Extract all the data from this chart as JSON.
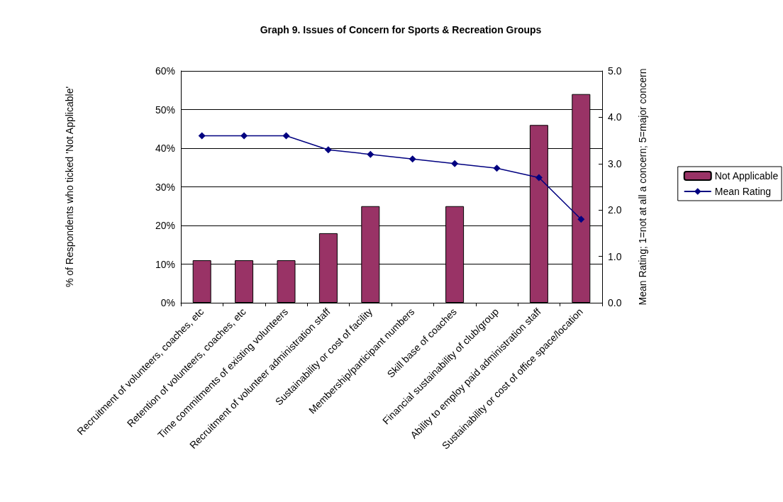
{
  "chart_data": {
    "type": "bar",
    "title": "Graph 9. Issues of Concern for Sports & Recreation Groups",
    "categories": [
      "Recruitment of volunteers, coaches, etc",
      "Retention of volunteers, coaches, etc",
      "Time commitments of existing volunteers",
      "Recruitment of volunteer administration staff",
      "Sustainability or cost of facility",
      "Membership/participant numbers",
      "Skill base of coaches",
      "Financial sustainability of club/group",
      "Ability to employ paid administration staff",
      "Sustainability or cost of office space/location"
    ],
    "series": [
      {
        "name": "Not Applicable",
        "color": "#993366",
        "values": [
          11,
          11,
          11,
          18,
          25,
          null,
          25,
          null,
          46,
          54
        ]
      },
      {
        "name": "Mean Rating",
        "type": "line",
        "axis": "y2",
        "color": "#000080",
        "marker": "diamond",
        "values": [
          3.6,
          3.6,
          3.6,
          3.3,
          3.2,
          3.1,
          3.0,
          2.9,
          2.7,
          1.8
        ]
      }
    ],
    "ylabel": "% of Respondents who ticked 'Not Applicable'",
    "y2label": "Mean Rating; 1=not at all a concern; 5=major concern",
    "ylim": [
      0,
      60
    ],
    "yticks": [
      {
        "value": 0,
        "label": "0%"
      },
      {
        "value": 10,
        "label": "10%"
      },
      {
        "value": 20,
        "label": "20%"
      },
      {
        "value": 30,
        "label": "30%"
      },
      {
        "value": 40,
        "label": "40%"
      },
      {
        "value": 50,
        "label": "50%"
      },
      {
        "value": 60,
        "label": "60%"
      }
    ],
    "y2lim": [
      0,
      5
    ],
    "y2ticks": [
      {
        "value": 0,
        "label": "0.0"
      },
      {
        "value": 1,
        "label": "1.0"
      },
      {
        "value": 2,
        "label": "2.0"
      },
      {
        "value": 3,
        "label": "3.0"
      },
      {
        "value": 4,
        "label": "4.0"
      },
      {
        "value": 5,
        "label": "5.0"
      }
    ],
    "grid": "y",
    "legend": "right"
  }
}
